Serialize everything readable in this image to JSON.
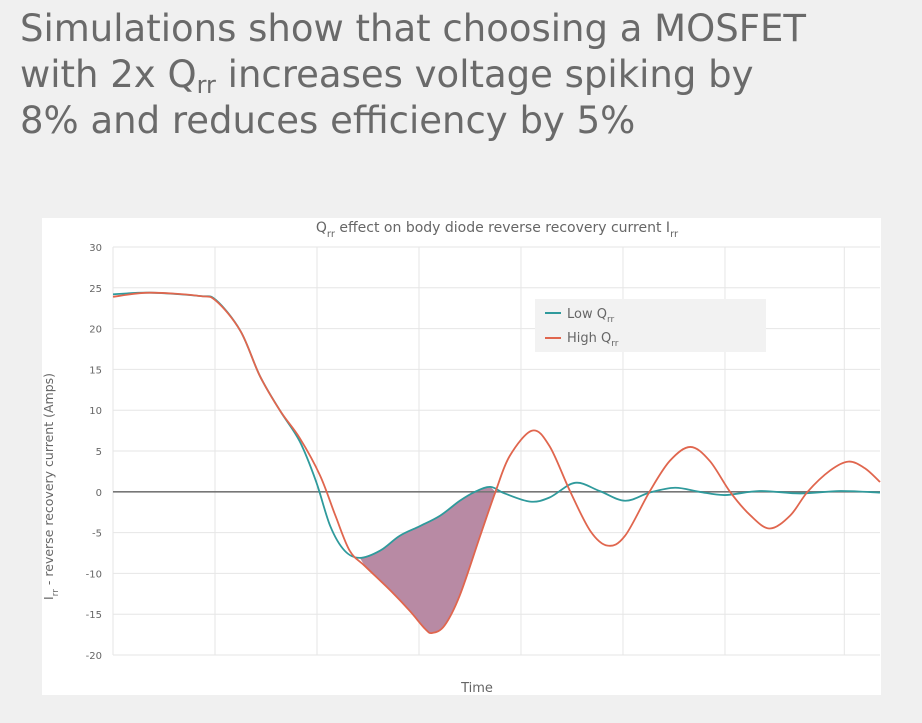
{
  "headline": {
    "line1": "Simulations show that choosing a MOSFET",
    "line2_pre": "with 2x Q",
    "line2_sub": "rr",
    "line2_post": " increases voltage spiking by",
    "line3": "8% and reduces efficiency by 5%"
  },
  "chart_data": {
    "type": "line",
    "title_parts": {
      "q": "Q",
      "q_sub": "rr",
      "mid": " effect on body diode reverse recovery current I",
      "i_sub": "rr"
    },
    "xlabel": "Time",
    "ylabel_parts": {
      "main": "I",
      "sub": "rr",
      "rest": " - reverse recovery current (Amps)"
    },
    "ylim": [
      -20,
      30
    ],
    "yticks": [
      "30",
      "25",
      "20",
      "15",
      "10",
      "5",
      "0",
      "-5",
      "-10",
      "-15",
      "-20"
    ],
    "ytick_values": [
      30,
      25,
      20,
      15,
      10,
      5,
      0,
      -5,
      -10,
      -15,
      -20
    ],
    "xlim": [
      0,
      7.52
    ],
    "xgrid": [
      0,
      1,
      2,
      3,
      4,
      5,
      6,
      7.17
    ],
    "grid": true,
    "legend_placement": "top-center",
    "shaded_between": [
      2.42,
      3.75
    ],
    "shade_color": "#b88aa4",
    "series": [
      {
        "name": "Low Q",
        "name_sub": "rr",
        "color": "#2f9a9c",
        "x": [
          0,
          0.36,
          0.85,
          1.01,
          1.25,
          1.44,
          1.64,
          1.83,
          1.99,
          2.13,
          2.27,
          2.42,
          2.62,
          2.81,
          3.01,
          3.21,
          3.4,
          3.55,
          3.7,
          3.84,
          4.09,
          4.28,
          4.53,
          4.77,
          5.02,
          5.26,
          5.51,
          5.75,
          6.0,
          6.34,
          6.74,
          7.13,
          7.52
        ],
        "y": [
          24.2,
          24.4,
          24.0,
          23.5,
          19.7,
          14.2,
          9.9,
          6.2,
          1.3,
          -4.2,
          -7.2,
          -8.1,
          -7.2,
          -5.4,
          -4.2,
          -2.9,
          -1.1,
          0,
          0.6,
          -0.2,
          -1.2,
          -0.7,
          1.1,
          0.1,
          -1.1,
          -0.1,
          0.5,
          0,
          -0.4,
          0.1,
          -0.2,
          0.1,
          -0.1
        ]
      },
      {
        "name": "High Q",
        "name_sub": "rr",
        "color": "#e0664e",
        "x": [
          0,
          0.36,
          0.85,
          1.01,
          1.25,
          1.44,
          1.64,
          1.83,
          2.03,
          2.18,
          2.32,
          2.47,
          2.72,
          2.91,
          3.06,
          3.13,
          3.25,
          3.4,
          3.6,
          3.75,
          3.89,
          4.11,
          4.28,
          4.48,
          4.68,
          4.85,
          5.02,
          5.26,
          5.46,
          5.66,
          5.85,
          6.05,
          6.25,
          6.44,
          6.64,
          6.81,
          7.03,
          7.21,
          7.37,
          7.52
        ],
        "y": [
          23.9,
          24.4,
          24.0,
          23.4,
          19.7,
          14.2,
          9.9,
          6.6,
          2.0,
          -2.9,
          -7.2,
          -9.1,
          -12.1,
          -14.6,
          -16.8,
          -17.3,
          -16.4,
          -12.7,
          -5.4,
          0,
          4.4,
          7.5,
          5.6,
          0.1,
          -4.8,
          -6.6,
          -5.4,
          0,
          3.8,
          5.5,
          3.8,
          0,
          -2.9,
          -4.5,
          -2.9,
          0,
          2.6,
          3.7,
          2.9,
          1.2
        ]
      }
    ]
  }
}
